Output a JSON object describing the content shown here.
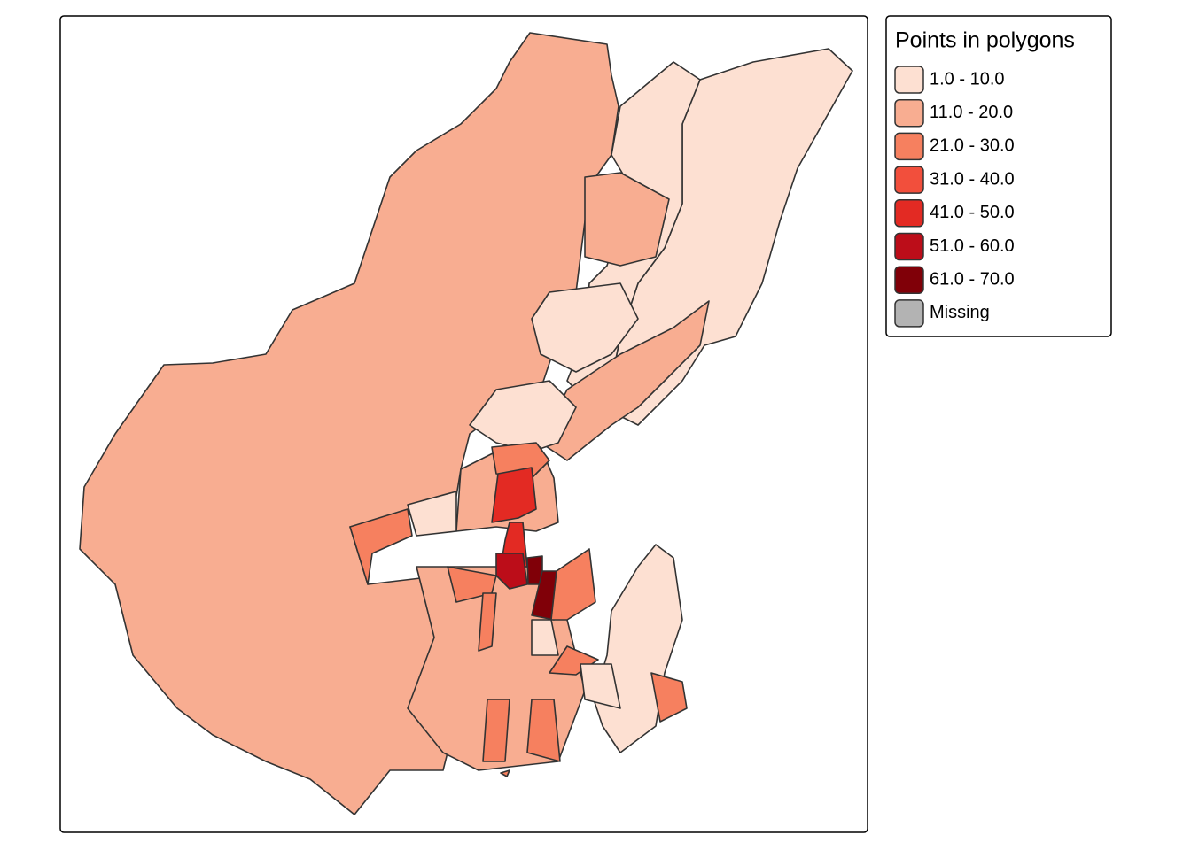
{
  "legend": {
    "title": "Points in polygons",
    "items": [
      {
        "label": "1.0 - 10.0",
        "color": "#fde0d2"
      },
      {
        "label": "11.0 - 20.0",
        "color": "#f8ad91"
      },
      {
        "label": "21.0 - 30.0",
        "color": "#f6805f"
      },
      {
        "label": "31.0 - 40.0",
        "color": "#f24f3c"
      },
      {
        "label": "41.0 - 50.0",
        "color": "#e32a23"
      },
      {
        "label": "51.0 - 60.0",
        "color": "#bc0d19"
      },
      {
        "label": "61.0 - 70.0",
        "color": "#800008"
      },
      {
        "label": "Missing",
        "color": "#b3b3b3"
      }
    ]
  }
}
